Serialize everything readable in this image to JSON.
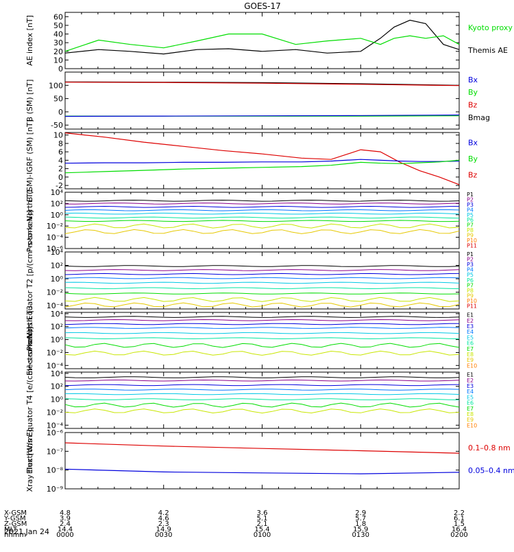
{
  "title": "GOES-17",
  "date": "2021 Jan 24",
  "orbit": {
    "labels": [
      "X-GSM",
      "Y-GSM",
      "Z-GSM",
      "MLT",
      "hhmm"
    ],
    "columns": [
      [
        "4.8",
        "3.9",
        "2.4",
        "14.4",
        "0000"
      ],
      [
        "4.2",
        "4.6",
        "2.3",
        "14.9",
        "0030"
      ],
      [
        "3.6",
        "5.1",
        "2.1",
        "15.4",
        "0100"
      ],
      [
        "2.9",
        "5.7",
        "1.8",
        "15.9",
        "0130"
      ],
      [
        "2.2",
        "6.1",
        "1.5",
        "16.4",
        "0200"
      ]
    ]
  },
  "colors": {
    "black": "#000000",
    "blue": "#0000dd",
    "green": "#00dd00",
    "red": "#dd0000",
    "p": [
      "#000000",
      "#8b008b",
      "#0000dd",
      "#0077ff",
      "#00c8e6",
      "#00e6a0",
      "#00dd00",
      "#c8e600",
      "#e6c800",
      "#ff7f00",
      "#dd0000"
    ]
  },
  "chart_data": [
    {
      "type": "line",
      "ylabel": "AE index [nT]",
      "yticks": [
        "0",
        "10",
        "20",
        "30",
        "40",
        "50",
        "60"
      ],
      "ylim": [
        0,
        65
      ],
      "legend": [
        {
          "label": "Kyoto proxy AE",
          "color": "#00dd00"
        },
        {
          "label": "Themis AE",
          "color": "#000000"
        }
      ],
      "x_hours": [
        0,
        0.17,
        0.33,
        0.5,
        0.67,
        0.83,
        1.0,
        1.17,
        1.33,
        1.5,
        1.6,
        1.67,
        1.75,
        1.83,
        1.92,
        2.0
      ],
      "series": [
        {
          "name": "Themis AE",
          "color": "#000000",
          "values": [
            18,
            22,
            20,
            17,
            22,
            23,
            20,
            22,
            18,
            20,
            35,
            48,
            56,
            52,
            28,
            22
          ]
        },
        {
          "name": "Kyoto proxy AE",
          "color": "#00dd00",
          "values": [
            20,
            33,
            28,
            24,
            32,
            40,
            40,
            28,
            32,
            35,
            28,
            35,
            38,
            35,
            38,
            28
          ]
        }
      ]
    },
    {
      "type": "line",
      "ylabel": "B (SM) [nT]",
      "yticks": [
        "-50",
        "0",
        "50",
        "100"
      ],
      "ylim": [
        -65,
        150
      ],
      "legend": [
        {
          "label": "Bx",
          "color": "#0000dd"
        },
        {
          "label": "By",
          "color": "#00dd00"
        },
        {
          "label": "Bz",
          "color": "#dd0000"
        },
        {
          "label": "Bmag",
          "color": "#000000"
        }
      ],
      "x_hours": [
        0,
        0.5,
        1.0,
        1.5,
        2.0
      ],
      "series": [
        {
          "name": "Bmag",
          "color": "#000000",
          "values": [
            113,
            112,
            110,
            106,
            100
          ]
        },
        {
          "name": "Bz",
          "color": "#dd0000",
          "values": [
            112,
            111,
            108,
            104,
            99
          ]
        },
        {
          "name": "By",
          "color": "#00dd00",
          "values": [
            -16,
            -16,
            -16,
            -16,
            -15
          ]
        },
        {
          "name": "Bx",
          "color": "#0000dd",
          "values": [
            -17,
            -16,
            -15,
            -14,
            -12
          ]
        }
      ]
    },
    {
      "type": "line",
      "ylabel": "B (SM)-IGRF (SM) [nT]",
      "yticks": [
        "-2",
        "0",
        "2",
        "4",
        "6",
        "8",
        "10"
      ],
      "ylim": [
        -2.8,
        10.6
      ],
      "legend": [
        {
          "label": "Bx",
          "color": "#0000dd"
        },
        {
          "label": "By",
          "color": "#00dd00"
        },
        {
          "label": "Bz",
          "color": "#dd0000"
        }
      ],
      "x_hours": [
        0,
        0.2,
        0.4,
        0.6,
        0.8,
        1.0,
        1.2,
        1.35,
        1.5,
        1.6,
        1.7,
        1.8,
        1.9,
        2.0
      ],
      "series": [
        {
          "name": "Bz",
          "color": "#dd0000",
          "values": [
            10.5,
            9.5,
            8.3,
            7.3,
            6.3,
            5.5,
            4.5,
            4.2,
            6.5,
            6.0,
            3.5,
            1.5,
            0.0,
            -1.8
          ]
        },
        {
          "name": "Bx",
          "color": "#0000dd",
          "values": [
            3.3,
            3.4,
            3.4,
            3.5,
            3.5,
            3.6,
            3.6,
            3.8,
            4.2,
            4.0,
            3.8,
            3.7,
            3.7,
            3.8
          ]
        },
        {
          "name": "By",
          "color": "#00dd00",
          "values": [
            1.0,
            1.3,
            1.6,
            1.9,
            2.1,
            2.3,
            2.5,
            2.8,
            3.5,
            3.3,
            3.2,
            3.4,
            3.6,
            4.0
          ]
        }
      ]
    },
    {
      "type": "line",
      "log": true,
      "ylabel": "Protons North T1",
      "yticks": [
        "10⁻⁶",
        "10⁻⁴",
        "10⁻²",
        "10⁰",
        "10²",
        "10⁴"
      ],
      "ylim": [
        -6,
        4
      ],
      "legend": [
        "P1",
        "P2",
        "P3",
        "P4",
        "P5",
        "P6",
        "P7",
        "P8",
        "P9",
        "P10",
        "P11"
      ],
      "levels_log10": [
        2.5,
        2.0,
        1.4,
        0.8,
        0.2,
        -0.5,
        -1.1,
        -2.0,
        -3.0
      ]
    },
    {
      "type": "line",
      "log": true,
      "ylabel": "Protons Equator T2 [p/(cm²-s-sr-keV)]",
      "yticks": [
        "10⁻⁴",
        "10⁻²",
        "10⁰",
        "10²",
        "10⁴"
      ],
      "ylim": [
        -4.5,
        4
      ],
      "legend": [
        "P1",
        "P2",
        "P3",
        "P4",
        "P5",
        "P6",
        "P7",
        "P8",
        "P9",
        "P10",
        "P11"
      ],
      "levels_log10": [
        1.9,
        1.3,
        0.7,
        0.1,
        -0.6,
        -1.4,
        -2.2,
        -3.1,
        -3.9
      ]
    },
    {
      "type": "line",
      "log": true,
      "ylabel": "Electrons North T3",
      "yticks": [
        "10⁻⁴",
        "10⁻²",
        "10⁰",
        "10²",
        "10⁴"
      ],
      "ylim": [
        -4.5,
        4.2
      ],
      "legend": [
        "E1",
        "E2",
        "E3",
        "E4",
        "E5",
        "E6",
        "E7",
        "E8",
        "E9",
        "E10"
      ],
      "levels_log10": [
        3.5,
        3.0,
        2.4,
        1.8,
        1.0,
        0.2,
        -0.9,
        -2.1
      ]
    },
    {
      "type": "line",
      "log": true,
      "ylabel": "Electrons Equator T4 [e/(cm²-s-sr-keV)]",
      "yticks": [
        "10⁻⁴",
        "10⁻²",
        "10⁰",
        "10²",
        "10⁴"
      ],
      "ylim": [
        -4.5,
        4.2
      ],
      "legend": [
        "E1",
        "E2",
        "E3",
        "E4",
        "E5",
        "E6",
        "E7",
        "E8",
        "E9",
        "E10"
      ],
      "levels_log10": [
        3.4,
        2.9,
        2.2,
        1.5,
        0.8,
        0.0,
        -0.9,
        -1.8
      ]
    },
    {
      "type": "line",
      "log": true,
      "ylabel": "Xray flux [W/m²]",
      "yticks": [
        "10⁻⁹",
        "10⁻⁸",
        "10⁻⁷",
        "10⁻⁶"
      ],
      "ylim": [
        -9,
        -6
      ],
      "legend": [
        {
          "label": "0.1–0.8 nm",
          "color": "#dd0000"
        },
        {
          "label": "0.05–0.4 nm",
          "color": "#0000dd"
        }
      ],
      "x_hours": [
        0,
        0.5,
        1.0,
        1.5,
        2.0
      ],
      "series": [
        {
          "name": "0.1–0.8 nm",
          "color": "#dd0000",
          "values": [
            -6.55,
            -6.72,
            -6.85,
            -6.97,
            -7.1
          ]
        },
        {
          "name": "0.05–0.4 nm",
          "color": "#0000dd",
          "values": [
            -7.95,
            -8.1,
            -8.15,
            -8.2,
            -8.12
          ]
        }
      ]
    }
  ]
}
